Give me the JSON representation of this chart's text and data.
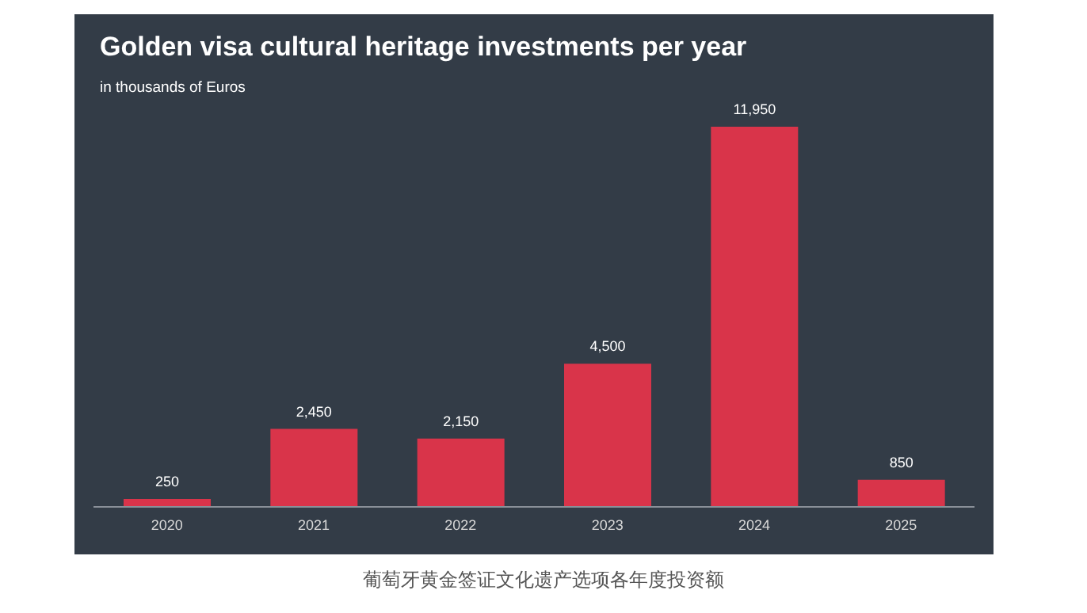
{
  "chart_data": {
    "type": "bar",
    "title": "Golden visa cultural heritage investments per year",
    "subtitle": "in thousands of Euros",
    "categories": [
      "2020",
      "2021",
      "2022",
      "2023",
      "2024",
      "2025"
    ],
    "values": [
      250,
      2450,
      2150,
      4500,
      11950,
      850
    ],
    "color": "#d9344a",
    "value_labels": [
      "250",
      "2,450",
      "2,150",
      "4,500",
      "11,950",
      "850"
    ],
    "grid": false,
    "legend": false,
    "annotations": [
      "葡萄牙黄金签证文化遗产选项各年度投资额"
    ]
  }
}
